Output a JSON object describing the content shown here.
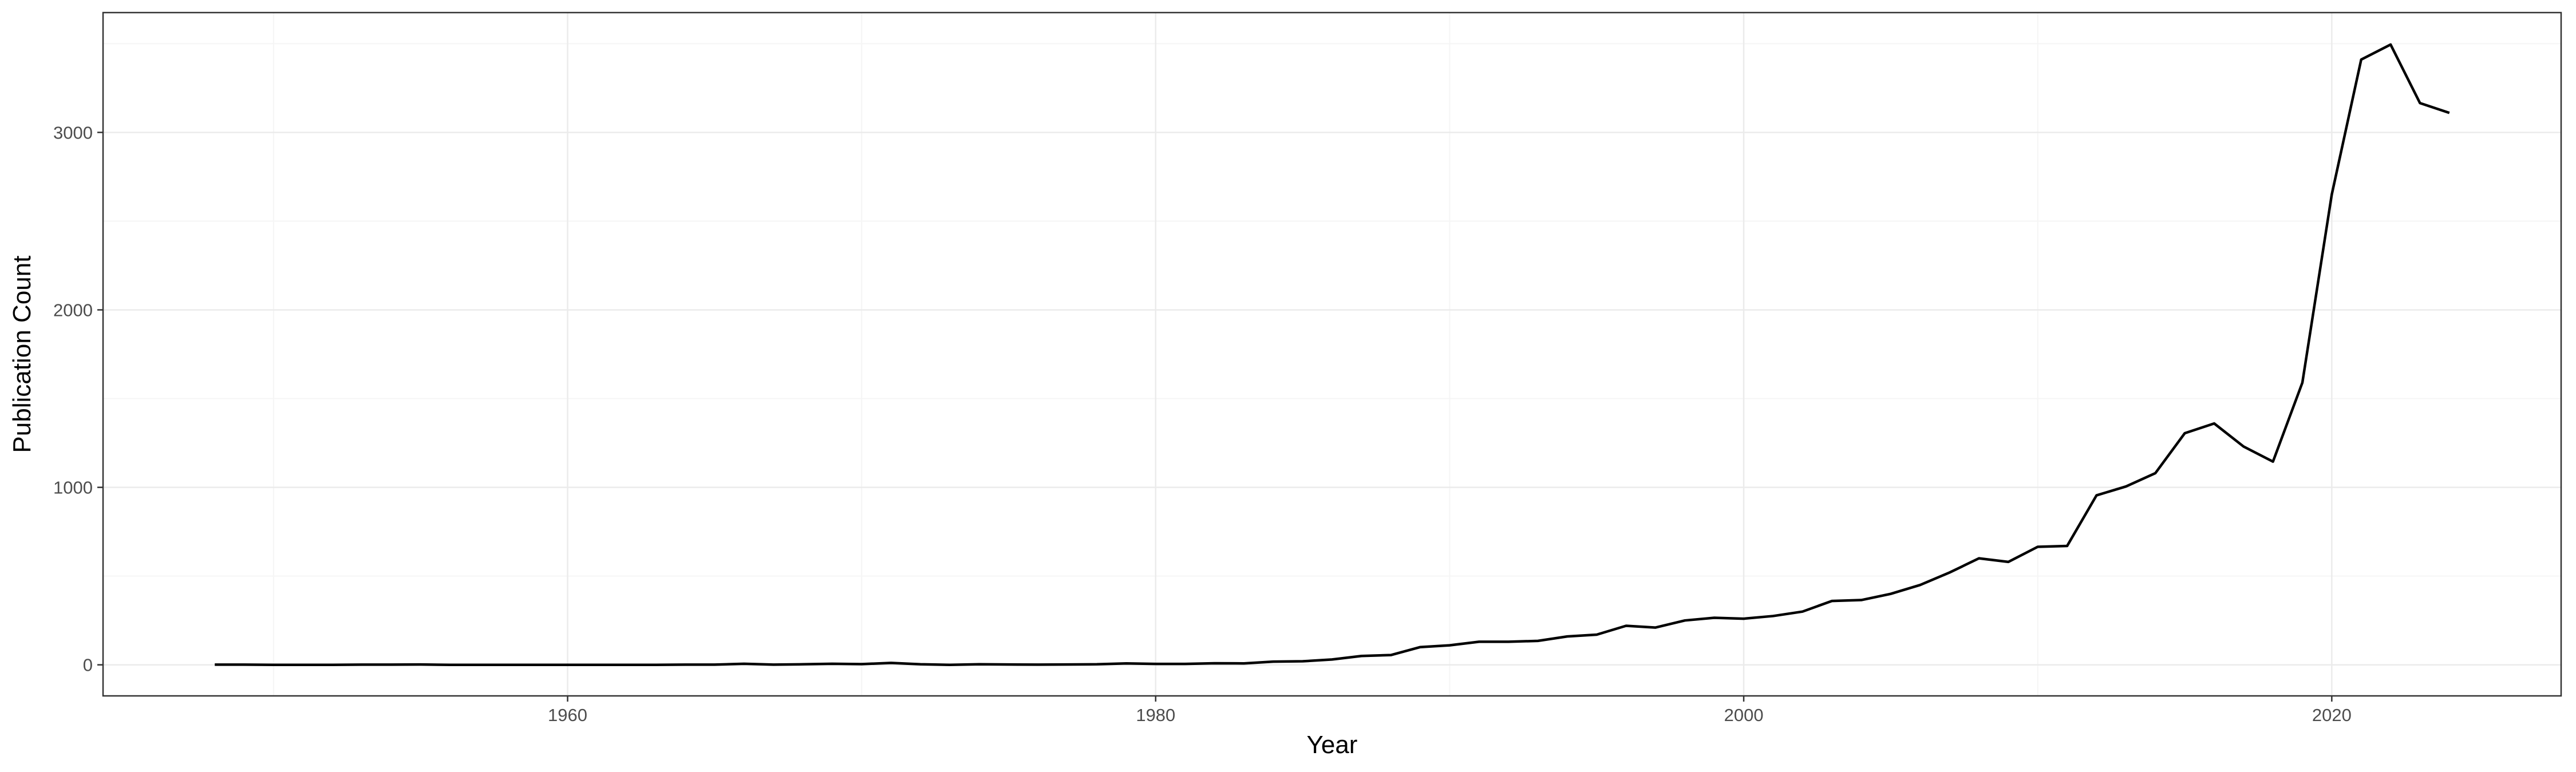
{
  "chart_data": {
    "type": "line",
    "title": "",
    "xlabel": "Year",
    "ylabel": "Publication Count",
    "xlim": [
      1944.2,
      2027.8
    ],
    "ylim": [
      -175,
      3675
    ],
    "x_ticks": [
      1960,
      1980,
      2000,
      2020
    ],
    "y_ticks": [
      0,
      1000,
      2000,
      3000
    ],
    "x_tick_labels": [
      "1960",
      "1980",
      "2000",
      "2020"
    ],
    "y_tick_labels": [
      "0",
      "1000",
      "2000",
      "3000"
    ],
    "grid": true,
    "legend": "none",
    "colors": {
      "line": "#000000",
      "panel_border": "#333333",
      "grid_major": "#ebebeb",
      "grid_minor": "#f5f5f5"
    },
    "series": [
      {
        "x": [
          1948,
          1949,
          1950,
          1951,
          1952,
          1953,
          1954,
          1955,
          1956,
          1957,
          1958,
          1959,
          1960,
          1961,
          1962,
          1963,
          1964,
          1965,
          1966,
          1967,
          1968,
          1969,
          1970,
          1971,
          1972,
          1973,
          1974,
          1975,
          1976,
          1977,
          1978,
          1979,
          1980,
          1981,
          1982,
          1983,
          1984,
          1985,
          1986,
          1987,
          1988,
          1989,
          1990,
          1991,
          1992,
          1993,
          1994,
          1995,
          1996,
          1997,
          1998,
          1999,
          2000,
          2001,
          2002,
          2003,
          2004,
          2005,
          2006,
          2007,
          2008,
          2009,
          2010,
          2011,
          2012,
          2013,
          2014,
          2015,
          2016,
          2017,
          2018,
          2019,
          2020,
          2021,
          2022,
          2023,
          2024
        ],
        "values": [
          1,
          1,
          0,
          0,
          0,
          1,
          1,
          2,
          0,
          0,
          0,
          0,
          0,
          0,
          0,
          0,
          1,
          1,
          6,
          1,
          3,
          6,
          4,
          11,
          3,
          0,
          3,
          2,
          1,
          2,
          3,
          8,
          5,
          5,
          9,
          8,
          18,
          20,
          30,
          50,
          55,
          100,
          110,
          130,
          130,
          135,
          160,
          170,
          220,
          210,
          250,
          265,
          260,
          275,
          300,
          360,
          365,
          400,
          450,
          520,
          600,
          580,
          665,
          670,
          955,
          1005,
          1080,
          1305,
          1360,
          1230,
          1145,
          1590,
          2650,
          3410,
          3495,
          3165,
          3110
        ]
      }
    ]
  }
}
